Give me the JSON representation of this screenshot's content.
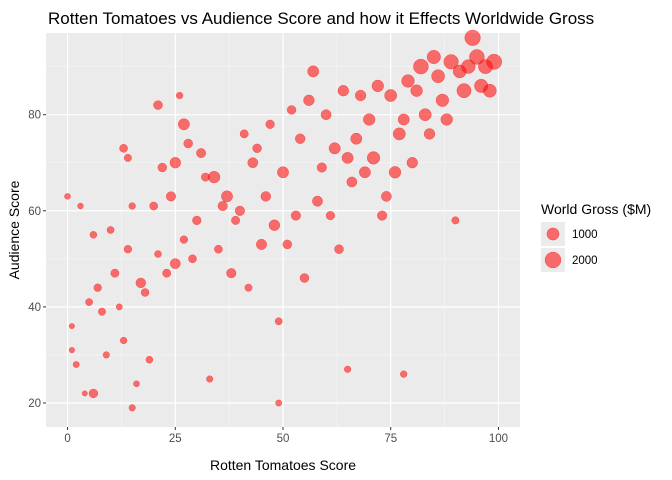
{
  "chart_data": {
    "type": "scatter",
    "title": "Rotten Tomatoes vs Audience Score and how it Effects Worldwide Gross",
    "xlabel": "Rotten Tomatoes Score",
    "ylabel": "Audience Score",
    "xlim": [
      -5,
      105
    ],
    "ylim": [
      15,
      97
    ],
    "x_ticks": [
      0,
      25,
      50,
      75,
      100
    ],
    "y_ticks": [
      20,
      40,
      60,
      80
    ],
    "grid": true,
    "point_color": "#ff0000",
    "point_alpha": 0.55,
    "legend": {
      "title": "World Gross ($M)",
      "placement": "right",
      "entries": [
        {
          "label": "1000",
          "value": 1000
        },
        {
          "label": "2000",
          "value": 2000
        }
      ]
    },
    "points": [
      [
        0,
        63,
        100
      ],
      [
        1,
        36,
        60
      ],
      [
        1,
        31,
        70
      ],
      [
        2,
        28,
        120
      ],
      [
        3,
        61,
        90
      ],
      [
        4,
        22,
        60
      ],
      [
        5,
        41,
        200
      ],
      [
        6,
        22,
        400
      ],
      [
        6,
        55,
        180
      ],
      [
        7,
        44,
        260
      ],
      [
        8,
        39,
        220
      ],
      [
        9,
        30,
        140
      ],
      [
        10,
        56,
        200
      ],
      [
        11,
        47,
        320
      ],
      [
        12,
        40,
        120
      ],
      [
        13,
        73,
        300
      ],
      [
        13,
        33,
        160
      ],
      [
        14,
        71,
        220
      ],
      [
        14,
        52,
        260
      ],
      [
        15,
        61,
        160
      ],
      [
        15,
        19,
        140
      ],
      [
        16,
        24,
        110
      ],
      [
        17,
        45,
        550
      ],
      [
        18,
        43,
        280
      ],
      [
        19,
        29,
        180
      ],
      [
        20,
        61,
        300
      ],
      [
        21,
        82,
        420
      ],
      [
        21,
        51,
        180
      ],
      [
        22,
        69,
        400
      ],
      [
        23,
        47,
        320
      ],
      [
        24,
        63,
        500
      ],
      [
        25,
        49,
        600
      ],
      [
        25,
        70,
        700
      ],
      [
        26,
        84,
        160
      ],
      [
        27,
        78,
        800
      ],
      [
        27,
        54,
        260
      ],
      [
        28,
        74,
        420
      ],
      [
        29,
        50,
        300
      ],
      [
        30,
        58,
        380
      ],
      [
        31,
        72,
        460
      ],
      [
        32,
        67,
        320
      ],
      [
        33,
        25,
        140
      ],
      [
        34,
        67,
        900
      ],
      [
        35,
        52,
        300
      ],
      [
        36,
        61,
        500
      ],
      [
        37,
        63,
        800
      ],
      [
        38,
        47,
        500
      ],
      [
        39,
        58,
        340
      ],
      [
        40,
        60,
        500
      ],
      [
        41,
        76,
        320
      ],
      [
        42,
        44,
        220
      ],
      [
        43,
        70,
        600
      ],
      [
        44,
        73,
        400
      ],
      [
        45,
        53,
        650
      ],
      [
        46,
        63,
        550
      ],
      [
        47,
        78,
        380
      ],
      [
        48,
        57,
        720
      ],
      [
        49,
        20,
        120
      ],
      [
        49,
        37,
        200
      ],
      [
        50,
        68,
        800
      ],
      [
        51,
        53,
        420
      ],
      [
        52,
        81,
        400
      ],
      [
        53,
        59,
        500
      ],
      [
        54,
        75,
        550
      ],
      [
        55,
        46,
        420
      ],
      [
        56,
        83,
        700
      ],
      [
        57,
        89,
        800
      ],
      [
        58,
        62,
        620
      ],
      [
        59,
        69,
        500
      ],
      [
        60,
        80,
        600
      ],
      [
        61,
        59,
        360
      ],
      [
        62,
        73,
        820
      ],
      [
        63,
        52,
        420
      ],
      [
        64,
        85,
        700
      ],
      [
        65,
        27,
        150
      ],
      [
        65,
        71,
        800
      ],
      [
        66,
        66,
        600
      ],
      [
        67,
        75,
        800
      ],
      [
        68,
        84,
        700
      ],
      [
        69,
        68,
        800
      ],
      [
        70,
        79,
        900
      ],
      [
        71,
        71,
        1100
      ],
      [
        72,
        86,
        900
      ],
      [
        73,
        59,
        500
      ],
      [
        74,
        63,
        600
      ],
      [
        75,
        84,
        1000
      ],
      [
        76,
        68,
        900
      ],
      [
        77,
        76,
        1000
      ],
      [
        78,
        26,
        160
      ],
      [
        78,
        79,
        800
      ],
      [
        79,
        87,
        1100
      ],
      [
        80,
        70,
        700
      ],
      [
        81,
        85,
        900
      ],
      [
        82,
        90,
        1700
      ],
      [
        83,
        80,
        1000
      ],
      [
        84,
        76,
        700
      ],
      [
        85,
        92,
        1300
      ],
      [
        86,
        88,
        1200
      ],
      [
        87,
        83,
        1100
      ],
      [
        88,
        79,
        900
      ],
      [
        89,
        91,
        1600
      ],
      [
        90,
        58,
        220
      ],
      [
        91,
        89,
        1200
      ],
      [
        92,
        85,
        1500
      ],
      [
        93,
        90,
        1400
      ],
      [
        94,
        96,
        1900
      ],
      [
        95,
        92,
        1700
      ],
      [
        96,
        86,
        1300
      ],
      [
        97,
        90,
        1500
      ],
      [
        98,
        85,
        1200
      ],
      [
        99,
        91,
        1800
      ]
    ]
  }
}
